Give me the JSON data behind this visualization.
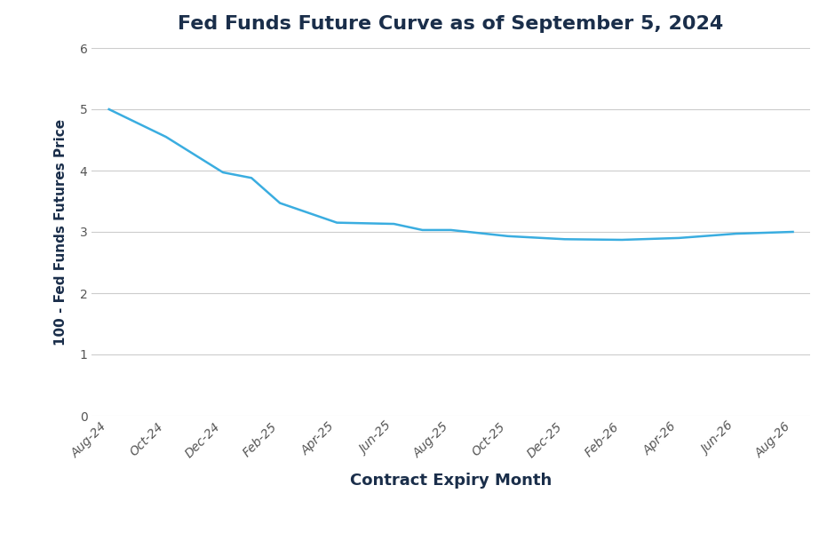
{
  "title": "Fed Funds Future Curve as of September 5, 2024",
  "xlabel": "Contract Expiry Month",
  "ylabel": "100 - Fed Funds Futures Price",
  "background_color": "#ffffff",
  "line_color": "#3aade0",
  "line_width": 1.8,
  "title_color": "#1a2e4a",
  "axis_label_color": "#1a2e4a",
  "tick_label_color": "#555555",
  "grid_color": "#cccccc",
  "ylim": [
    0,
    6
  ],
  "yticks": [
    0,
    1,
    2,
    3,
    4,
    5,
    6
  ],
  "x_labels": [
    "Aug-24",
    "Oct-24",
    "Dec-24",
    "Feb-25",
    "Apr-25",
    "Jun-25",
    "Aug-25",
    "Oct-25",
    "Dec-25",
    "Feb-26",
    "Apr-26",
    "Jun-26",
    "Aug-26"
  ],
  "y_values": [
    5.0,
    4.55,
    3.97,
    3.88,
    3.47,
    3.15,
    3.13,
    3.03,
    3.03,
    2.93,
    2.88,
    2.87,
    2.9,
    2.97,
    3.0
  ],
  "x_indices": [
    0,
    1,
    2,
    2.5,
    3,
    4,
    5,
    5.5,
    6,
    7,
    8,
    9,
    10,
    11,
    12
  ]
}
